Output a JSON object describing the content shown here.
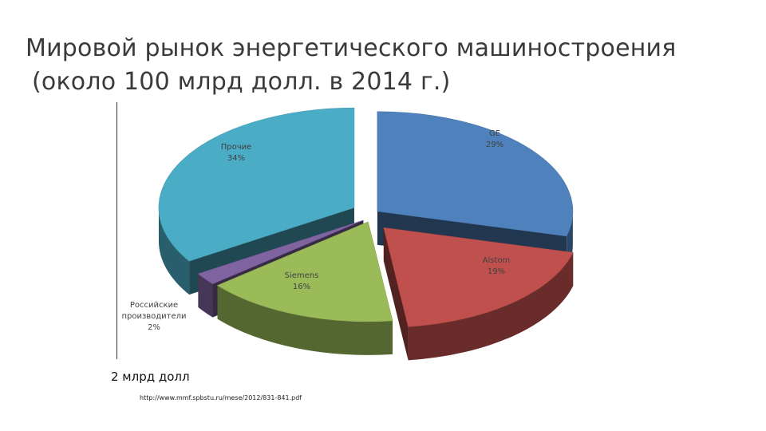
{
  "title": {
    "line1": "Мировой рынок энергетического машиностроения",
    "line2": "(около 100 млрд долл. в 2014 г.)"
  },
  "chart_data": {
    "type": "pie",
    "style": "3d-exploded",
    "slices": [
      {
        "name": "GE",
        "percent_label": "29%",
        "value": 29,
        "color": "#4f81bd"
      },
      {
        "name": "Alstom",
        "percent_label": "19%",
        "value": 19,
        "color": "#c0504d"
      },
      {
        "name": "Siemens",
        "percent_label": "16%",
        "value": 16,
        "color": "#9bbb59"
      },
      {
        "name": "Российские производители",
        "name_lines": [
          "Российские",
          "производители"
        ],
        "percent_label": "2%",
        "value": 2,
        "color": "#8064a2"
      },
      {
        "name": "Прочие",
        "percent_label": "34%",
        "value": 34,
        "color": "#4bacc6"
      }
    ]
  },
  "scale_note": "2 млрд долл",
  "source": "http://www.mmf.spbstu.ru/mese/2012/831-841.pdf"
}
